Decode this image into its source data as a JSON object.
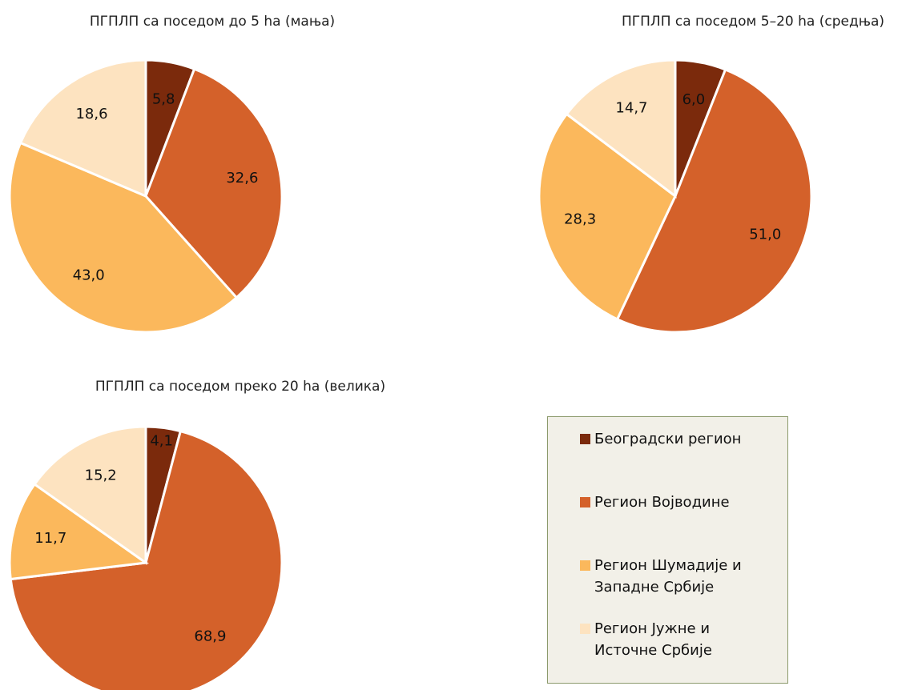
{
  "chart_data": [
    {
      "type": "pie",
      "title": "ПГПЛП са поседом до 5 ha (мања)",
      "categories": [
        "Београдски регион",
        "Регион Војводине",
        "Регион Шумадије и Западне Србије",
        "Регион Јужне и Источне Србије"
      ],
      "values": [
        5.8,
        32.6,
        43.0,
        18.6
      ],
      "value_labels": [
        "5,8",
        "32,6",
        "43,0",
        "18,6"
      ],
      "colors": [
        "#7b2a0c",
        "#d4612a",
        "#fbb85c",
        "#fde3c0"
      ]
    },
    {
      "type": "pie",
      "title": "ПГПЛП са поседом 5–20 ha (средња)",
      "categories": [
        "Београдски регион",
        "Регион Војводине",
        "Регион Шумадије и Западне Србије",
        "Регион Јужне и Источне Србије"
      ],
      "values": [
        6.0,
        51.0,
        28.3,
        14.7
      ],
      "value_labels": [
        "6,0",
        "51,0",
        "28,3",
        "14,7"
      ],
      "colors": [
        "#7b2a0c",
        "#d4612a",
        "#fbb85c",
        "#fde3c0"
      ]
    },
    {
      "type": "pie",
      "title": "ПГПЛП са поседом преко 20 ha (велика)",
      "categories": [
        "Београдски регион",
        "Регион Војводине",
        "Регион Шумадије и Западне Србије",
        "Регион Јужне и Источне Србије"
      ],
      "values": [
        4.1,
        68.9,
        11.7,
        15.2
      ],
      "value_labels": [
        "4,1",
        "68,9",
        "11,7",
        "15,2"
      ],
      "colors": [
        "#7b2a0c",
        "#d4612a",
        "#fbb85c",
        "#fde3c0"
      ]
    }
  ]
}
